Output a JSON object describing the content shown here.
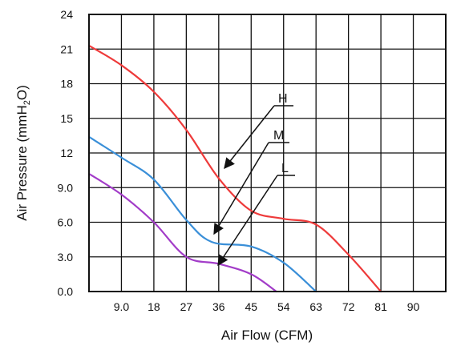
{
  "chart_data": {
    "type": "line",
    "xlabel": "Air Flow (CFM)",
    "ylabel_parts": [
      "Air Pressure (mmH",
      "2",
      "O)"
    ],
    "xlim": [
      0,
      99
    ],
    "ylim": [
      0,
      24
    ],
    "x_ticks": [
      9,
      18,
      27,
      36,
      45,
      54,
      63,
      72,
      81,
      90
    ],
    "x_tick_labels": [
      "9.0",
      "18",
      "27",
      "36",
      "45",
      "54",
      "63",
      "72",
      "81",
      "90"
    ],
    "y_ticks": [
      0,
      3,
      6,
      9,
      12,
      15,
      18,
      21,
      24
    ],
    "y_tick_labels": [
      "0.0",
      "3.0",
      "6.0",
      "9.0",
      "12",
      "15",
      "18",
      "21",
      "24"
    ],
    "x_grid_step": 9,
    "y_grid_step": 3,
    "grid": true,
    "series": [
      {
        "name": "H",
        "color": "#ee3a3a",
        "points": [
          [
            0,
            21.3
          ],
          [
            9,
            19.6
          ],
          [
            18,
            17.3
          ],
          [
            27,
            14.0
          ],
          [
            36,
            9.8
          ],
          [
            45,
            7.0
          ],
          [
            54,
            6.3
          ],
          [
            63,
            5.8
          ],
          [
            72,
            3.2
          ],
          [
            81,
            0.0
          ]
        ]
      },
      {
        "name": "M",
        "color": "#3a8fd8",
        "points": [
          [
            0,
            13.4
          ],
          [
            9,
            11.6
          ],
          [
            18,
            9.7
          ],
          [
            27,
            6.2
          ],
          [
            34,
            4.3
          ],
          [
            45,
            3.9
          ],
          [
            54,
            2.5
          ],
          [
            63,
            0.0
          ]
        ]
      },
      {
        "name": "L",
        "color": "#a23cc8",
        "points": [
          [
            0,
            10.2
          ],
          [
            9,
            8.4
          ],
          [
            18,
            6.0
          ],
          [
            27,
            3.0
          ],
          [
            36,
            2.4
          ],
          [
            45,
            1.5
          ],
          [
            52,
            0.0
          ]
        ]
      }
    ]
  }
}
